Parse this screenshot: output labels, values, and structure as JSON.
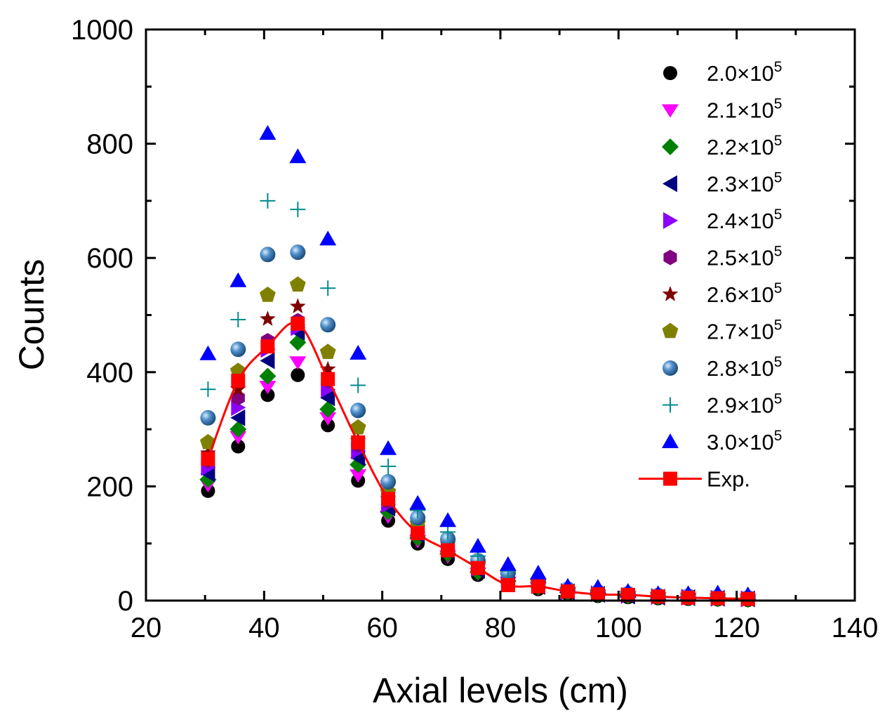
{
  "chart_data": {
    "type": "scatter",
    "xlabel": "Axial levels (cm)",
    "ylabel": "Counts",
    "xlim": [
      20,
      140
    ],
    "ylim": [
      0,
      1000
    ],
    "xticks": [
      "20",
      "40",
      "60",
      "80",
      "100",
      "120",
      "140"
    ],
    "yticks": [
      "0",
      "200",
      "400",
      "600",
      "800",
      "1000"
    ],
    "legend_position": "top-right",
    "x": [
      30.5,
      35.6,
      40.6,
      45.7,
      50.8,
      55.9,
      61.0,
      66.0,
      71.1,
      76.2,
      81.3,
      86.4,
      91.4,
      96.5,
      101.6,
      106.7,
      111.8,
      116.8,
      121.9
    ],
    "series": [
      {
        "name": "2.0×10",
        "exp": "5",
        "marker": "circle",
        "color": "#000000",
        "values": [
          192,
          270,
          360,
          395,
          307,
          210,
          140,
          100,
          73,
          45,
          30,
          20,
          12,
          8,
          6,
          4,
          3,
          2,
          1
        ]
      },
      {
        "name": "2.1×10",
        "exp": "5",
        "marker": "triangle-down",
        "color": "#ff00ff",
        "values": [
          203,
          287,
          375,
          418,
          320,
          220,
          148,
          105,
          78,
          48,
          32,
          22,
          13,
          9,
          7,
          5,
          4,
          3,
          2
        ]
      },
      {
        "name": "2.2×10",
        "exp": "5",
        "marker": "diamond",
        "color": "#008000",
        "values": [
          212,
          300,
          393,
          452,
          335,
          238,
          155,
          110,
          82,
          50,
          34,
          24,
          14,
          10,
          8,
          6,
          5,
          3,
          2
        ]
      },
      {
        "name": "2.3×10",
        "exp": "5",
        "marker": "triangle-left",
        "color": "#000080",
        "values": [
          222,
          320,
          420,
          470,
          355,
          250,
          162,
          115,
          86,
          53,
          36,
          25,
          15,
          11,
          8,
          6,
          5,
          4,
          3
        ]
      },
      {
        "name": "2.4×10",
        "exp": "5",
        "marker": "triangle-right",
        "color": "#8b00ff",
        "values": [
          233,
          338,
          440,
          478,
          370,
          262,
          168,
          120,
          90,
          56,
          38,
          26,
          16,
          12,
          9,
          7,
          6,
          4,
          3
        ]
      },
      {
        "name": "2.5×10",
        "exp": "5",
        "marker": "hexagon",
        "color": "#800080",
        "values": [
          245,
          355,
          455,
          490,
          385,
          272,
          173,
          124,
          94,
          58,
          40,
          27,
          17,
          12,
          10,
          8,
          6,
          5,
          4
        ]
      },
      {
        "name": "2.6×10",
        "exp": "5",
        "marker": "star",
        "color": "#800000",
        "values": [
          258,
          370,
          493,
          515,
          405,
          280,
          178,
          128,
          98,
          60,
          42,
          28,
          18,
          13,
          10,
          8,
          7,
          5,
          4
        ]
      },
      {
        "name": "2.7×10",
        "exp": "5",
        "marker": "pentagon",
        "color": "#808000",
        "values": [
          277,
          402,
          535,
          553,
          435,
          303,
          190,
          135,
          103,
          64,
          45,
          30,
          19,
          14,
          11,
          9,
          7,
          6,
          4
        ]
      },
      {
        "name": "2.8×10",
        "exp": "5",
        "marker": "sphere",
        "color": "#2e6da4",
        "values": [
          320,
          440,
          606,
          610,
          483,
          333,
          208,
          145,
          108,
          70,
          48,
          32,
          20,
          15,
          12,
          9,
          8,
          6,
          5
        ]
      },
      {
        "name": "2.9×10",
        "exp": "5",
        "marker": "plus",
        "color": "#008b8b",
        "values": [
          370,
          492,
          700,
          685,
          547,
          377,
          235,
          158,
          120,
          78,
          52,
          36,
          22,
          17,
          13,
          10,
          8,
          7,
          6
        ]
      },
      {
        "name": "3.0×10",
        "exp": "5",
        "marker": "triangle-up",
        "color": "#0000ff",
        "values": [
          432,
          560,
          818,
          777,
          633,
          433,
          266,
          170,
          140,
          95,
          63,
          48,
          25,
          23,
          16,
          12,
          12,
          13,
          10
        ]
      },
      {
        "name": "Exp.",
        "exp": "",
        "marker": "square",
        "color": "#ff0000",
        "line": true,
        "values": [
          248,
          385,
          445,
          485,
          388,
          277,
          178,
          118,
          88,
          57,
          27,
          25,
          16,
          11,
          10,
          7,
          5,
          4,
          3
        ]
      }
    ]
  }
}
